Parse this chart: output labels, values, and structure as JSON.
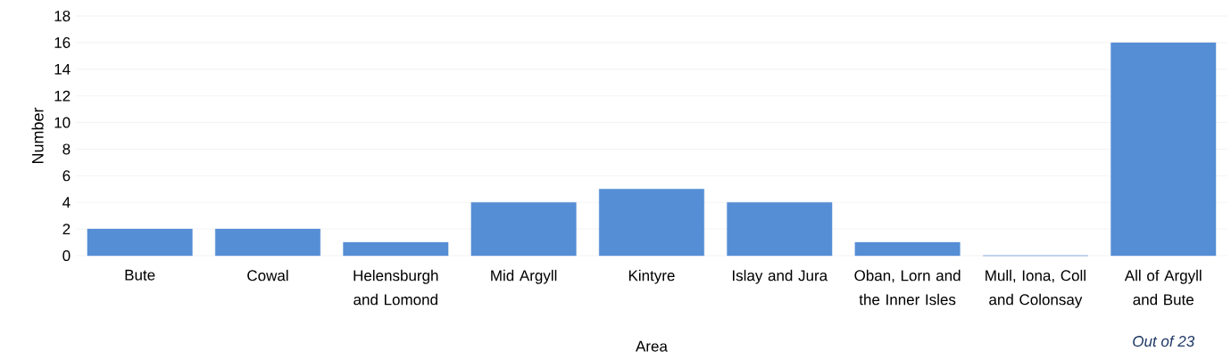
{
  "chart_data": {
    "type": "bar",
    "xlabel": "Area",
    "ylabel": "Number",
    "categories": [
      "Bute",
      "Cowal",
      "Helensburgh and Lomond",
      "Mid Argyll",
      "Kintyre",
      "Islay and Jura",
      "Oban, Lorn and the Inner Isles",
      "Mull, Iona, Coll and Colonsay",
      "All of Argyll and Bute"
    ],
    "values": [
      2,
      2,
      1,
      4,
      5,
      4,
      1,
      0,
      16
    ],
    "color": "#558ed5",
    "ylim": [
      0,
      18
    ],
    "yticks": [
      0,
      2,
      4,
      6,
      8,
      10,
      12,
      14,
      16,
      18
    ],
    "grid": "y",
    "annotations": [
      "Out of 23"
    ]
  }
}
